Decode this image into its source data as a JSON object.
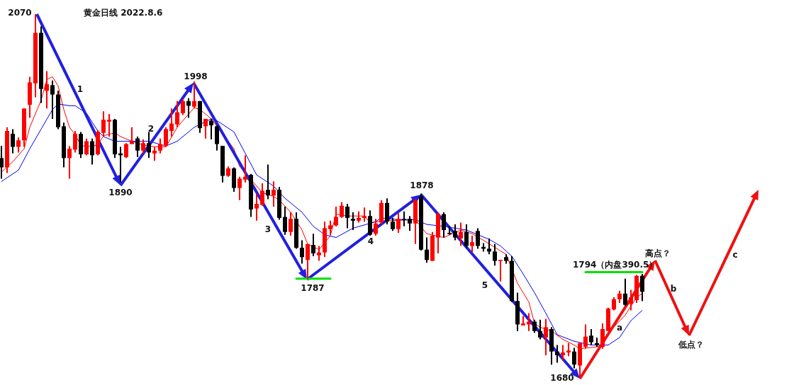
{
  "chart_data": {
    "type": "candlestick",
    "title": "黄金日线 2022.8.6",
    "categories": [
      null,
      null,
      null,
      null,
      null,
      null,
      null,
      null,
      null,
      null,
      null,
      null,
      null,
      null,
      null,
      null,
      null,
      null,
      null,
      null,
      null,
      null,
      null,
      null,
      null,
      null,
      null,
      null,
      null,
      null,
      null,
      null,
      null,
      null,
      null,
      null,
      null,
      null,
      null,
      null,
      null,
      null,
      null,
      null,
      null,
      null,
      null,
      null,
      null,
      null,
      null,
      null,
      null,
      null,
      null,
      null,
      null,
      null,
      null,
      null,
      null,
      null,
      null,
      null,
      null,
      null,
      null,
      null,
      null,
      null,
      null,
      null,
      null,
      null,
      null,
      null,
      null,
      null,
      null,
      null,
      null,
      null,
      null,
      null,
      null,
      null,
      null,
      null,
      null,
      null,
      null,
      null,
      null,
      null,
      null,
      null,
      null,
      null,
      null,
      null,
      null,
      null,
      null,
      null,
      null,
      null,
      null,
      null,
      null,
      null,
      null,
      null,
      null,
      null,
      null,
      null,
      null,
      null,
      null,
      null,
      null,
      null,
      null,
      null,
      null,
      null,
      null,
      null,
      null,
      null,
      null,
      null,
      null,
      null
    ],
    "ohlc": [
      [
        1916,
        1929,
        1894,
        1906
      ],
      [
        1906,
        1949,
        1900,
        1945
      ],
      [
        1942,
        1947,
        1921,
        1928
      ],
      [
        1928,
        1938,
        1922,
        1935
      ],
      [
        1935,
        1969,
        1928,
        1969
      ],
      [
        1973,
        2003,
        1959,
        1997
      ],
      [
        1996,
        2070,
        1981,
        2050
      ],
      [
        2050,
        2057,
        1975,
        1990
      ],
      [
        1988,
        2009,
        1969,
        1995
      ],
      [
        1994,
        1999,
        1958,
        1984
      ],
      [
        1984,
        1988,
        1947,
        1949
      ],
      [
        1950,
        1954,
        1906,
        1916
      ],
      [
        1916,
        1929,
        1894,
        1926
      ],
      [
        1925,
        1945,
        1922,
        1942
      ],
      [
        1942,
        1944,
        1916,
        1920
      ],
      [
        1920,
        1937,
        1919,
        1934
      ],
      [
        1934,
        1937,
        1909,
        1919
      ],
      [
        1920,
        1946,
        1919,
        1944
      ],
      [
        1943,
        1966,
        1939,
        1957
      ],
      [
        1955,
        1963,
        1939,
        1957
      ],
      [
        1957,
        1958,
        1916,
        1920
      ],
      [
        1921,
        1928,
        1890,
        1919
      ],
      [
        1917,
        1932,
        1916,
        1931
      ],
      [
        1931,
        1949,
        1931,
        1934
      ],
      [
        1937,
        1939,
        1917,
        1924
      ],
      [
        1924,
        1936,
        1921,
        1932
      ],
      [
        1932,
        1944,
        1916,
        1922
      ],
      [
        1921,
        1928,
        1913,
        1924
      ],
      [
        1924,
        1937,
        1921,
        1931
      ],
      [
        1929,
        1949,
        1928,
        1947
      ],
      [
        1945,
        1969,
        1939,
        1953
      ],
      [
        1952,
        1977,
        1949,
        1965
      ],
      [
        1964,
        1979,
        1962,
        1977
      ],
      [
        1977,
        1980,
        1959,
        1972
      ],
      [
        1971,
        1998,
        1969,
        1977
      ],
      [
        1977,
        1977,
        1943,
        1948
      ],
      [
        1950,
        1958,
        1937,
        1958
      ],
      [
        1956,
        1958,
        1936,
        1951
      ],
      [
        1950,
        1951,
        1924,
        1931
      ],
      [
        1929,
        1929,
        1890,
        1897
      ],
      [
        1897,
        1907,
        1896,
        1905
      ],
      [
        1905,
        1906,
        1880,
        1884
      ],
      [
        1884,
        1896,
        1871,
        1894
      ],
      [
        1893,
        1919,
        1890,
        1896
      ],
      [
        1898,
        1899,
        1853,
        1861
      ],
      [
        1862,
        1878,
        1849,
        1867
      ],
      [
        1866,
        1889,
        1865,
        1881
      ],
      [
        1882,
        1909,
        1872,
        1876
      ],
      [
        1876,
        1891,
        1864,
        1882
      ],
      [
        1882,
        1885,
        1850,
        1852
      ],
      [
        1853,
        1864,
        1834,
        1837
      ],
      [
        1837,
        1858,
        1833,
        1851
      ],
      [
        1851,
        1858,
        1819,
        1820
      ],
      [
        1820,
        1828,
        1803,
        1810
      ],
      [
        1807,
        1824,
        1787,
        1824
      ],
      [
        1823,
        1835,
        1811,
        1814
      ],
      [
        1812,
        1822,
        1806,
        1815
      ],
      [
        1815,
        1848,
        1810,
        1841
      ],
      [
        1840,
        1849,
        1834,
        1844
      ],
      [
        1844,
        1864,
        1843,
        1853
      ],
      [
        1853,
        1869,
        1852,
        1865
      ],
      [
        1864,
        1867,
        1841,
        1852
      ],
      [
        1851,
        1858,
        1839,
        1849
      ],
      [
        1849,
        1859,
        1847,
        1852
      ],
      [
        1852,
        1863,
        1848,
        1854
      ],
      [
        1854,
        1860,
        1833,
        1834
      ],
      [
        1835,
        1851,
        1833,
        1846
      ],
      [
        1847,
        1871,
        1845,
        1868
      ],
      [
        1868,
        1873,
        1845,
        1848
      ],
      [
        1848,
        1852,
        1838,
        1840
      ],
      [
        1840,
        1857,
        1836,
        1851
      ],
      [
        1851,
        1859,
        1843,
        1850
      ],
      [
        1851,
        1854,
        1838,
        1846
      ],
      [
        1846,
        1872,
        1824,
        1871
      ],
      [
        1875,
        1878,
        1817,
        1818
      ],
      [
        1818,
        1831,
        1804,
        1807
      ],
      [
        1806,
        1837,
        1806,
        1833
      ],
      [
        1831,
        1858,
        1814,
        1856
      ],
      [
        1856,
        1858,
        1831,
        1839
      ],
      [
        1836,
        1843,
        1834,
        1835
      ],
      [
        1838,
        1845,
        1828,
        1831
      ],
      [
        1830,
        1847,
        1822,
        1837
      ],
      [
        1837,
        1845,
        1820,
        1822
      ],
      [
        1822,
        1833,
        1815,
        1826
      ],
      [
        1838,
        1841,
        1819,
        1822
      ],
      [
        1821,
        1825,
        1816,
        1819
      ],
      [
        1819,
        1830,
        1813,
        1816
      ],
      [
        1816,
        1824,
        1801,
        1806
      ],
      [
        1806,
        1807,
        1784,
        1807
      ],
      [
        1810,
        1813,
        1803,
        1806
      ],
      [
        1806,
        1811,
        1762,
        1763
      ],
      [
        1763,
        1772,
        1731,
        1738
      ],
      [
        1737,
        1747,
        1737,
        1739
      ],
      [
        1738,
        1750,
        1731,
        1741
      ],
      [
        1741,
        1743,
        1729,
        1731
      ],
      [
        1731,
        1743,
        1722,
        1724
      ],
      [
        1724,
        1744,
        1705,
        1735
      ],
      [
        1733,
        1735,
        1695,
        1709
      ],
      [
        1709,
        1716,
        1697,
        1705
      ],
      [
        1705,
        1716,
        1699,
        1708
      ],
      [
        1708,
        1718,
        1704,
        1710
      ],
      [
        1709,
        1713,
        1691,
        1695
      ],
      [
        1694,
        1718,
        1680,
        1718
      ],
      [
        1714,
        1738,
        1712,
        1725
      ],
      [
        1726,
        1733,
        1716,
        1719
      ],
      [
        1718,
        1724,
        1714,
        1716
      ],
      [
        1714,
        1739,
        1712,
        1733
      ],
      [
        1731,
        1756,
        1731,
        1755
      ],
      [
        1754,
        1767,
        1753,
        1765
      ],
      [
        1765,
        1774,
        1761,
        1771
      ],
      [
        1771,
        1787,
        1758,
        1759
      ],
      [
        1760,
        1775,
        1753,
        1767
      ],
      [
        1764,
        1791,
        1761,
        1790
      ],
      [
        1790,
        1792,
        1763,
        1773
      ],
      null,
      null,
      null,
      null,
      null,
      null,
      null,
      null,
      null,
      null,
      null,
      null,
      null,
      null,
      null,
      null,
      null,
      null,
      null,
      null
    ],
    "series": [
      {
        "type": "line",
        "color": "#ff0000",
        "values": [
          1901,
          null,
          1912,
          null,
          1926,
          1949,
          null,
          1978,
          2000,
          2003,
          1993,
          1968,
          1949,
          1941,
          1930,
          1928,
          null,
          1930,
          1940,
          null,
          1943,
          1939,
          null,
          1934,
          null,
          1930,
          null,
          1928,
          null,
          1928,
          null,
          1949,
          null,
          null,
          1970,
          1968,
          null,
          1958,
          null,
          null,
          null,
          1926,
          1907,
          null,
          null,
          null,
          1879,
          null,
          1875,
          1871,
          null,
          1858,
          null,
          1839,
          1824,
          null,
          1818,
          null,
          1833,
          1856,
          null,
          1854,
          null,
          null,
          1854,
          1847,
          null,
          null,
          1849,
          null,
          null,
          null,
          null,
          1850,
          null,
          1835,
          null,
          null,
          1831,
          null,
          null,
          1839,
          null,
          1835,
          null,
          1828,
          null,
          null,
          null,
          1813,
          null,
          1782,
          null,
          1762,
          1739,
          1735,
          null,
          1731,
          null,
          1722,
          null,
          1716,
          1712,
          null,
          null,
          1714,
          1716,
          1729,
          null,
          null,
          1748,
          null,
          1767,
          1771,
          null,
          null,
          null,
          null,
          null,
          null,
          null,
          null,
          null,
          null,
          null,
          null,
          null,
          null,
          null,
          null,
          null,
          null,
          null,
          null
        ]
      },
      {
        "type": "line",
        "color": "#0000ff",
        "values": [
          1891,
          null,
          null,
          1903,
          null,
          1926,
          null,
          1947,
          null,
          1968,
          1974,
          null,
          1972,
          1972,
          null,
          1964,
          null,
          1945,
          1939,
          null,
          1934,
          null,
          null,
          null,
          1934,
          null,
          1934,
          null,
          null,
          1929,
          null,
          1934,
          null,
          null,
          1949,
          null,
          null,
          1958,
          1956,
          null,
          null,
          1944,
          null,
          1921,
          null,
          1898,
          null,
          null,
          1886,
          null,
          1873,
          null,
          null,
          1858,
          null,
          1843,
          null,
          1834,
          null,
          1831,
          null,
          null,
          1841,
          null,
          null,
          null,
          1848,
          1852,
          null,
          null,
          1850,
          null,
          null,
          1850,
          null,
          1845,
          null,
          null,
          1843,
          null,
          null,
          null,
          1839,
          null,
          null,
          null,
          1829,
          null,
          1822,
          null,
          1811,
          null,
          1792,
          null,
          1772,
          null,
          1750,
          null,
          1727,
          null,
          null,
          1720,
          null,
          null,
          1716,
          null,
          null,
          1716,
          null,
          1724,
          null,
          1742,
          null,
          1753,
          null,
          null,
          null,
          null,
          null,
          null,
          null,
          null,
          null,
          null,
          null,
          null,
          null,
          null,
          null,
          null,
          null,
          null,
          null,
          null
        ]
      },
      {
        "type": "line",
        "color": "#00e000",
        "values": [
          null,
          null,
          null,
          null,
          null,
          null,
          null,
          null,
          null,
          null,
          null,
          null,
          null,
          null,
          null,
          null,
          null,
          null,
          null,
          null,
          null,
          null,
          null,
          null,
          null,
          null,
          null,
          null,
          null,
          null,
          null,
          null,
          null,
          null,
          null,
          null,
          null,
          null,
          null,
          null,
          null,
          null,
          null,
          null,
          null,
          null,
          null,
          null,
          null,
          null,
          null,
          null,
          1787,
          null,
          null,
          null,
          null,
          null,
          1787,
          null,
          null,
          null,
          null,
          null,
          null,
          null,
          null,
          null,
          null,
          null,
          null,
          null,
          null,
          null,
          null,
          null,
          null,
          null,
          null,
          null,
          null,
          null,
          null,
          null,
          null,
          null,
          null,
          null,
          null,
          null,
          null,
          null,
          null,
          null,
          null,
          null,
          null,
          null,
          null,
          null,
          null,
          null,
          null,
          null,
          null,
          null,
          null,
          null,
          null,
          null,
          null,
          null,
          null,
          null,
          null,
          null,
          null,
          null,
          null,
          null,
          null,
          null,
          null,
          null,
          null,
          null,
          null,
          null,
          null,
          null,
          null,
          null,
          null,
          null
        ]
      },
      {
        "type": "line",
        "color": "#00e000",
        "values": [
          null,
          null,
          null,
          null,
          null,
          null,
          null,
          null,
          null,
          null,
          null,
          null,
          null,
          null,
          null,
          null,
          null,
          null,
          null,
          null,
          null,
          null,
          null,
          null,
          null,
          null,
          null,
          null,
          null,
          null,
          null,
          null,
          null,
          null,
          null,
          null,
          null,
          null,
          null,
          null,
          null,
          null,
          null,
          null,
          null,
          null,
          null,
          null,
          null,
          null,
          null,
          null,
          null,
          null,
          null,
          null,
          null,
          null,
          null,
          null,
          null,
          null,
          null,
          null,
          null,
          null,
          null,
          null,
          null,
          null,
          null,
          null,
          null,
          null,
          null,
          null,
          null,
          null,
          null,
          null,
          null,
          null,
          null,
          null,
          null,
          null,
          null,
          null,
          null,
          null,
          null,
          null,
          null,
          null,
          null,
          null,
          null,
          null,
          null,
          null,
          null,
          null,
          null,
          1794,
          null,
          null,
          null,
          null,
          null,
          null,
          null,
          null,
          null,
          1794,
          null,
          null,
          null,
          null,
          null,
          null,
          null,
          null,
          null,
          null,
          null,
          null,
          null,
          null,
          null,
          null,
          null,
          null,
          null,
          null
        ]
      }
    ],
    "annotations": [
      "2070",
      "1",
      "2",
      "1890",
      "1998",
      "3",
      "1787",
      "4",
      "1878",
      "5",
      "1680",
      "1794（内盘390.5）",
      "a",
      "高点？",
      "b",
      "低点？",
      "c"
    ]
  }
}
